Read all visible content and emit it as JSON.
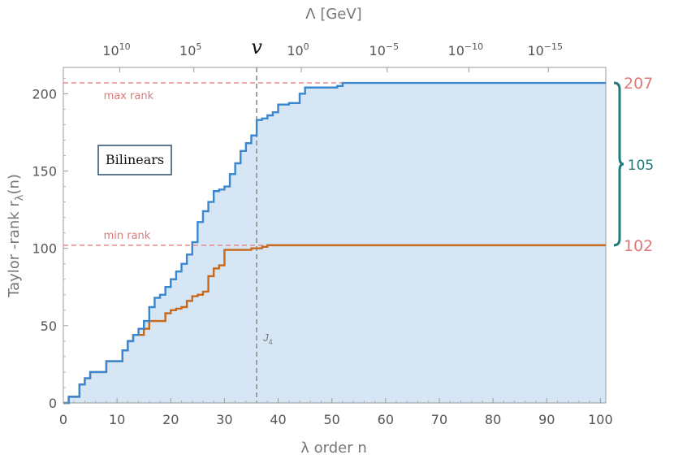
{
  "chart_data": {
    "type": "line",
    "title": "",
    "xlabel": "λ order n",
    "ylabel": "Taylor -rank   rλ(n)",
    "ylabel_parts": {
      "main": "Taylor -rank   r",
      "sub": "λ",
      "tail": "(n)"
    },
    "top_xlabel": "Λ [GeV]",
    "xlim": [
      0,
      101
    ],
    "ylim": [
      0,
      217
    ],
    "x_ticks": [
      0,
      10,
      20,
      30,
      40,
      50,
      60,
      70,
      80,
      90,
      100
    ],
    "y_ticks": [
      0,
      50,
      100,
      150,
      200
    ],
    "top_ticks": [
      {
        "x": 10.5,
        "base": "10",
        "exp": "10"
      },
      {
        "x": 24.3,
        "base": "10",
        "exp": "5"
      },
      {
        "x": 44.3,
        "base": "10",
        "exp": "0"
      },
      {
        "x": 60.3,
        "base": "10",
        "exp": "−5"
      },
      {
        "x": 75.5,
        "base": "10",
        "exp": "−10"
      },
      {
        "x": 90.3,
        "base": "10",
        "exp": "−15"
      }
    ],
    "top_marker": {
      "x": 36,
      "label": "v"
    },
    "vline": {
      "x": 36,
      "label": "J",
      "label_sub": "4"
    },
    "hlines": [
      {
        "y": 207,
        "label": "max rank",
        "label_x": 7.5,
        "value_label": "207"
      },
      {
        "y": 102,
        "label": "min rank",
        "label_x": 7.5,
        "value_label": "102"
      }
    ],
    "bracket": {
      "from": 102,
      "to": 207,
      "label": "105"
    },
    "legend_box": "Bilinears",
    "series": [
      {
        "color": "#3a86cf",
        "fill": "#d6e6f5",
        "x": [
          0,
          1,
          3,
          4,
          5,
          6,
          7,
          8,
          10,
          11,
          12,
          13,
          14,
          15,
          16,
          17,
          18,
          19,
          20,
          21,
          22,
          23,
          24,
          25,
          26,
          27,
          28,
          29,
          30,
          31,
          32,
          33,
          34,
          35,
          36,
          37,
          38,
          39,
          40,
          42,
          44,
          45,
          48,
          51,
          52,
          101
        ],
        "y": [
          0,
          4,
          12,
          16,
          20,
          20,
          20,
          27,
          27,
          34,
          40,
          44,
          48,
          53,
          62,
          68,
          70,
          75,
          80,
          85,
          90,
          96,
          104,
          117,
          124,
          130,
          137,
          138,
          140,
          148,
          155,
          163,
          168,
          173,
          183,
          184,
          186,
          188,
          193,
          194,
          200,
          204,
          204,
          205,
          207,
          207
        ]
      },
      {
        "color": "#c8681a",
        "x": [
          0,
          1,
          3,
          4,
          5,
          8,
          10,
          11,
          12,
          13,
          15,
          16,
          19,
          20,
          21,
          22,
          23,
          24,
          25,
          26,
          27,
          28,
          29,
          30,
          31,
          32,
          35,
          36,
          37,
          38,
          101
        ],
        "y": [
          0,
          4,
          12,
          16,
          20,
          27,
          27,
          34,
          40,
          44,
          48,
          53,
          58,
          60,
          61,
          62,
          66,
          69,
          70,
          72,
          82,
          87,
          89,
          99,
          99,
          99,
          100,
          100,
          101,
          102,
          102
        ]
      }
    ]
  }
}
